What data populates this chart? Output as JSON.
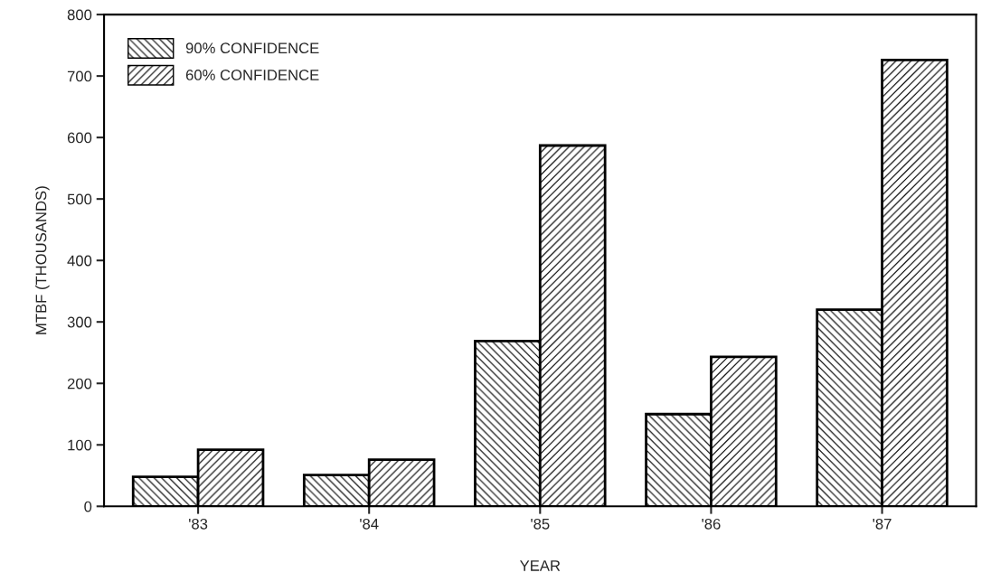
{
  "chart_data": {
    "type": "bar",
    "xlabel": "YEAR",
    "ylabel": "MTBF (THOUSANDS)",
    "categories": [
      "'83",
      "'84",
      "'85",
      "'86",
      "'87"
    ],
    "series": [
      {
        "name": "90% CONFIDENCE",
        "color": "#000000",
        "values": [
          48,
          51,
          269,
          150,
          320
        ]
      },
      {
        "name": "60% CONFIDENCE",
        "color": "#000000",
        "values": [
          92,
          76,
          587,
          243,
          726
        ]
      }
    ],
    "ylim": [
      0,
      800
    ],
    "yticks": [
      0,
      100,
      200,
      300,
      400,
      500,
      600,
      700,
      800
    ],
    "grid": false,
    "legend": "top left"
  }
}
